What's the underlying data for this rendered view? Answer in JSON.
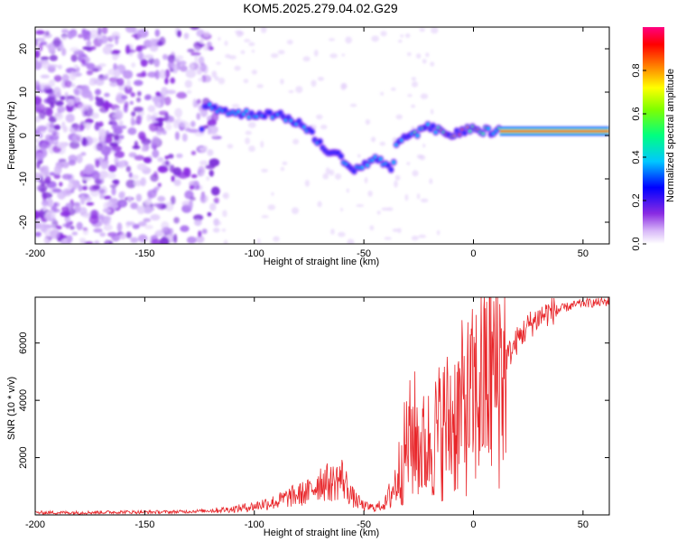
{
  "title": "KOM5.2025.279.04.02.G29",
  "chart_data": [
    {
      "type": "heatmap",
      "name": "spectrogram",
      "xlabel": "Height of straight line (km)",
      "ylabel": "Frequency (Hz)",
      "xlim": [
        -200,
        62
      ],
      "ylim": [
        -25,
        25
      ],
      "x_ticks": [
        -200,
        -150,
        -100,
        -50,
        0,
        50
      ],
      "y_ticks": [
        -20,
        -10,
        0,
        10,
        20
      ],
      "noise_region": [
        -200,
        -125
      ],
      "signal_ridge": [
        {
          "x": -123,
          "f": 7
        },
        {
          "x": -115,
          "f": 6
        },
        {
          "x": -108,
          "f": 5
        },
        {
          "x": -100,
          "f": 5
        },
        {
          "x": -92,
          "f": 5
        },
        {
          "x": -85,
          "f": 4
        },
        {
          "x": -80,
          "f": 3
        },
        {
          "x": -75,
          "f": 1
        },
        {
          "x": -70,
          "f": -2
        },
        {
          "x": -65,
          "f": -4
        },
        {
          "x": -60,
          "f": -5
        },
        {
          "x": -55,
          "f": -8
        },
        {
          "x": -50,
          "f": -7
        },
        {
          "x": -45,
          "f": -5
        },
        {
          "x": -40,
          "f": -7
        },
        {
          "x": -37,
          "f": -8
        },
        {
          "x": -35,
          "f": -1
        },
        {
          "x": -30,
          "f": -1
        },
        {
          "x": -25,
          "f": 1
        },
        {
          "x": -20,
          "f": 2
        },
        {
          "x": -15,
          "f": 1
        },
        {
          "x": -10,
          "f": 0
        },
        {
          "x": -5,
          "f": 1
        },
        {
          "x": 0,
          "f": 2
        },
        {
          "x": 5,
          "f": 1
        },
        {
          "x": 10,
          "f": 1
        },
        {
          "x": 20,
          "f": 1
        },
        {
          "x": 40,
          "f": 1
        },
        {
          "x": 62,
          "f": 1
        }
      ],
      "colorbar": {
        "label": "Normalized spectral amplitude",
        "range": [
          0,
          1
        ],
        "ticks": [
          "0.0",
          "0.2",
          "0.4",
          "0.6",
          "0.8"
        ]
      }
    },
    {
      "type": "line",
      "name": "snr",
      "xlabel": "Height of straight line (km)",
      "ylabel": "SNR (10 * v/v)",
      "xlim": [
        -200,
        62
      ],
      "ylim": [
        0,
        7600
      ],
      "x_ticks": [
        -200,
        -150,
        -100,
        -50,
        0,
        50
      ],
      "y_ticks": [
        2000,
        4000,
        6000
      ],
      "series": [
        {
          "name": "SNR",
          "color": "#e8262a",
          "x": [
            -200,
            -180,
            -160,
            -140,
            -130,
            -120,
            -110,
            -100,
            -95,
            -90,
            -85,
            -80,
            -75,
            -70,
            -65,
            -60,
            -55,
            -50,
            -45,
            -40,
            -38,
            -35,
            -33,
            -30,
            -27,
            -25,
            -22,
            -20,
            -17,
            -15,
            -12,
            -10,
            -7,
            -5,
            -3,
            0,
            2,
            5,
            8,
            10,
            12,
            15,
            18,
            20,
            25,
            30,
            35,
            40,
            45,
            50,
            55,
            62
          ],
          "y": [
            80,
            80,
            100,
            100,
            120,
            150,
            200,
            300,
            400,
            450,
            600,
            700,
            800,
            1200,
            1100,
            1300,
            600,
            300,
            250,
            400,
            700,
            1200,
            1800,
            2500,
            2800,
            2500,
            2300,
            2500,
            2800,
            3000,
            3200,
            3300,
            3500,
            3700,
            3800,
            4000,
            4300,
            4700,
            4900,
            5100,
            5100,
            5500,
            5800,
            6100,
            6600,
            6900,
            7100,
            7200,
            7300,
            7400,
            7400,
            7450
          ]
        }
      ]
    }
  ]
}
